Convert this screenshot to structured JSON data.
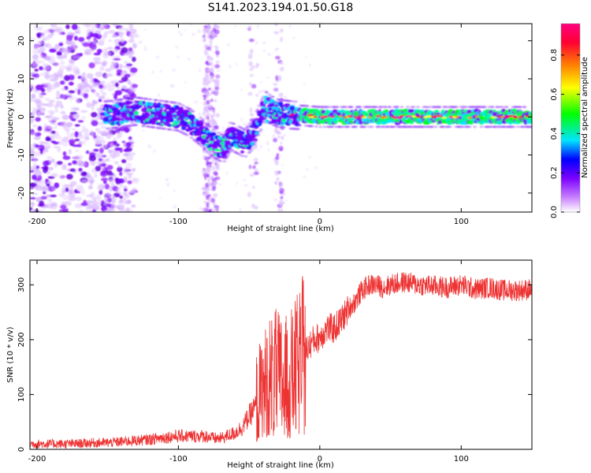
{
  "title": "S141.2023.194.01.50.G18",
  "chart_data": [
    {
      "type": "heatmap",
      "xlabel": "Height of straight line (km)",
      "ylabel": "Frequency (Hz)",
      "xlim": [
        -205,
        150
      ],
      "ylim": [
        -25,
        24.5
      ],
      "xticks": [
        -200,
        -100,
        0,
        100
      ],
      "yticks": [
        -20,
        -10,
        0,
        10,
        20
      ],
      "colorbar": {
        "label": "Normalized spectral amplitude",
        "range": [
          0,
          0.96
        ],
        "ticks": [
          0.0,
          0.2,
          0.4,
          0.6,
          0.8
        ],
        "colors": [
          "#ffffff",
          "#c77dff",
          "#7b00ff",
          "#0000ff",
          "#00e5ff",
          "#00ff00",
          "#ffff00",
          "#ff8000",
          "#ff0033",
          "#ff0080"
        ]
      },
      "ridge": {
        "name": "",
        "points": [
          [
            -150,
            0.5
          ],
          [
            -140,
            1.0
          ],
          [
            -130,
            1.5
          ],
          [
            -120,
            1.0
          ],
          [
            -110,
            0.5
          ],
          [
            -100,
            0
          ],
          [
            -92,
            -1.5
          ],
          [
            -85,
            -3.5
          ],
          [
            -80,
            -5.5
          ],
          [
            -75,
            -7
          ],
          [
            -68,
            -8.5
          ],
          [
            -63,
            -5
          ],
          [
            -58,
            -6
          ],
          [
            -53,
            -7
          ],
          [
            -48,
            -5
          ],
          [
            -42,
            0
          ],
          [
            -38,
            3
          ],
          [
            -35,
            2
          ],
          [
            -30,
            1
          ],
          [
            -20,
            0.5
          ],
          [
            -10,
            0.3
          ],
          [
            0,
            0
          ],
          [
            20,
            0
          ],
          [
            50,
            0
          ],
          [
            90,
            0
          ],
          [
            120,
            0
          ],
          [
            150,
            0
          ]
        ]
      }
    },
    {
      "type": "line",
      "xlabel": "Height of straight line (km)",
      "ylabel": "SNR (10 * v/v)",
      "xlim": [
        -205,
        150
      ],
      "ylim": [
        0,
        345
      ],
      "xticks": [
        -200,
        -100,
        0,
        100
      ],
      "yticks": [
        0,
        100,
        200,
        300
      ],
      "series": [
        {
          "color": "#ee3333",
          "x": [
            -205,
            -190,
            -175,
            -160,
            -150,
            -140,
            -130,
            -120,
            -110,
            -100,
            -90,
            -80,
            -75,
            -70,
            -60,
            -55,
            -50,
            -45,
            -40,
            -35,
            -30,
            -25,
            -20,
            -15,
            -10,
            -5,
            0,
            5,
            10,
            15,
            20,
            25,
            30,
            35,
            40,
            45,
            50,
            60,
            70,
            80,
            90,
            100,
            110,
            120,
            130,
            140,
            150
          ],
          "y": [
            10,
            10,
            10,
            12,
            12,
            14,
            16,
            18,
            22,
            24,
            24,
            24,
            20,
            20,
            30,
            40,
            60,
            80,
            105,
            125,
            130,
            120,
            130,
            150,
            180,
            198,
            205,
            220,
            220,
            235,
            255,
            270,
            290,
            300,
            300,
            295,
            300,
            305,
            300,
            298,
            295,
            300,
            292,
            295,
            290,
            290,
            292
          ]
        }
      ]
    }
  ]
}
